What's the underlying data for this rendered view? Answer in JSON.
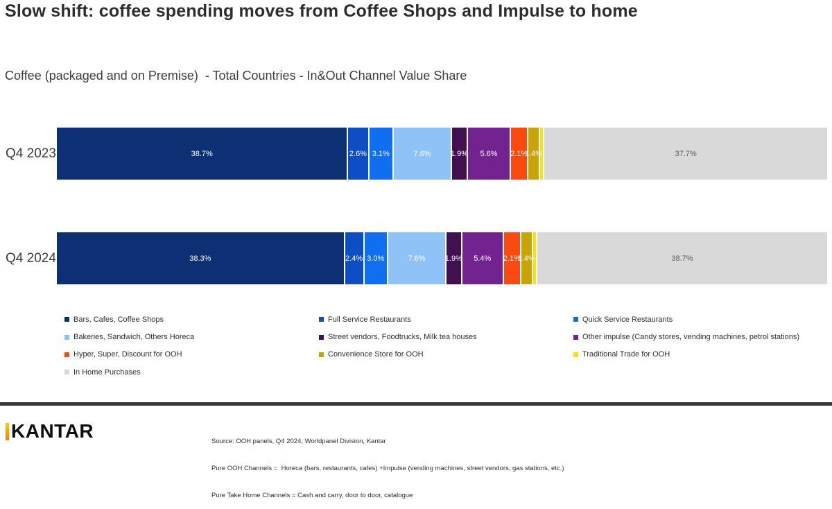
{
  "page": {
    "title": "Slow shift: coffee spending moves from Coffee Shops and Impulse to home",
    "subtitle": "Coffee (packaged and on Premise)  - Total Countries - In&Out Channel Value Share"
  },
  "chart_data": {
    "type": "bar",
    "orientation": "horizontal",
    "stacked": true,
    "normalized_100_percent": true,
    "unit": "%",
    "title": "Coffee (packaged and on Premise)  - Total Countries - In&Out Channel Value Share",
    "categories": [
      "Q4 2023",
      "Q4 2024"
    ],
    "series": [
      {
        "name": "Bars, Cafes, Coffee Shops",
        "color": "#0d2f73",
        "label_color": "#ffffff",
        "values": [
          38.7,
          38.3
        ]
      },
      {
        "name": "Full Service Restaurants",
        "color": "#0e4ec4",
        "label_color": "#ffffff",
        "values": [
          2.6,
          2.4
        ]
      },
      {
        "name": "Quick Service Restaurants",
        "color": "#0f6ff0",
        "label_color": "#ffffff",
        "values": [
          3.1,
          3.0
        ]
      },
      {
        "name": "Bakeries, Sandwich, Others Horeca",
        "color": "#8fc3f7",
        "label_color": "#ffffff",
        "values": [
          7.6,
          7.6
        ]
      },
      {
        "name": "Street vendors, Foodtrucks, Milk tea houses",
        "color": "#421050",
        "label_color": "#ffffff",
        "values": [
          1.9,
          1.9
        ]
      },
      {
        "name": "Other impulse (Candy stores, vending machines, petrol stations)",
        "color": "#722390",
        "label_color": "#ffffff",
        "values": [
          5.6,
          5.4
        ]
      },
      {
        "name": "Hyper, Super, Discount for OOH",
        "color": "#fb4a10",
        "label_color": "#ffffff",
        "values": [
          2.1,
          2.1
        ]
      },
      {
        "name": "Convenience Store for OOH",
        "color": "#c8a408",
        "label_color": "#ffffff",
        "values": [
          1.4,
          1.4
        ]
      },
      {
        "name": "Traditional Trade for OOH",
        "color": "#ffe000",
        "label_color": "#ffffff",
        "values": [
          0.4,
          0.4
        ],
        "show_labels": false
      },
      {
        "name": "In Home Purchases",
        "color": "#d9d9d9",
        "label_color": "#595959",
        "values": [
          37.7,
          38.7
        ]
      }
    ],
    "value_label_format": "{value}%",
    "legend_position": "bottom",
    "axes": "none (100% stacked, labels inside segments)"
  },
  "footer": {
    "logo_text": "KANTAR",
    "source_lines": [
      "Source: OOH panels, Q4 2024, Worldpanel Division, Kantar",
      "Pure OOH Channels =  Horeca (bars, restaurants, cafes) +Impulse (vending machines, street vendors, gas stations, etc.)",
      "Pure Take Home Channels = Cash and carry, door to door, catalogue"
    ]
  }
}
